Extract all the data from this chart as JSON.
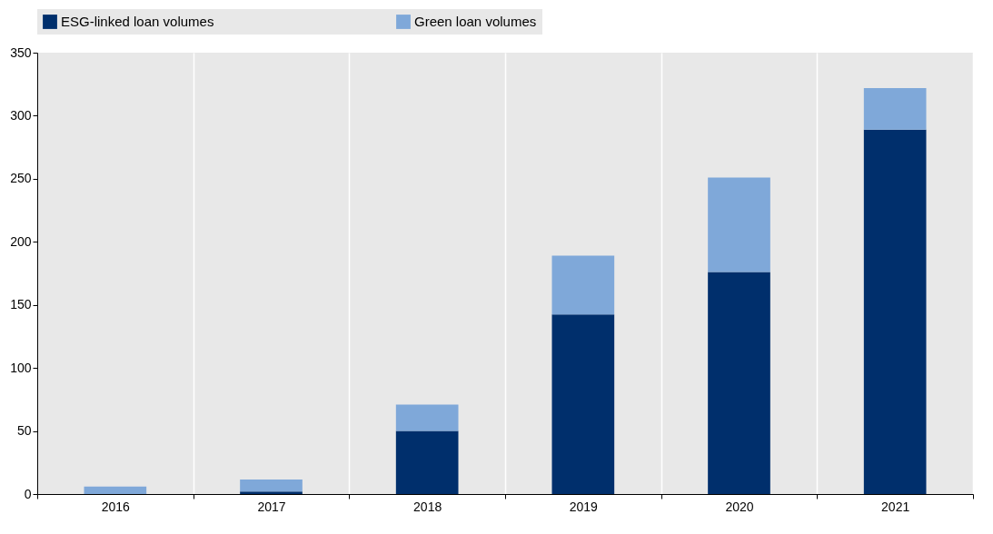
{
  "chart_data": {
    "type": "bar",
    "stacked": true,
    "categories": [
      "2016",
      "2017",
      "2018",
      "2019",
      "2020",
      "2021"
    ],
    "series": [
      {
        "name": "ESG-linked loan volumes",
        "color": "#002f6c",
        "values": [
          0,
          2,
          50,
          142.5,
          176,
          289
        ]
      },
      {
        "name": "Green loan volumes",
        "color": "#7fa8d9",
        "values": [
          6,
          9.5,
          21,
          46.5,
          75,
          33
        ]
      }
    ],
    "ylim": [
      0,
      350
    ],
    "yticks": [
      0,
      50,
      100,
      150,
      200,
      250,
      300,
      350
    ],
    "grid": "x",
    "legend": "top"
  }
}
